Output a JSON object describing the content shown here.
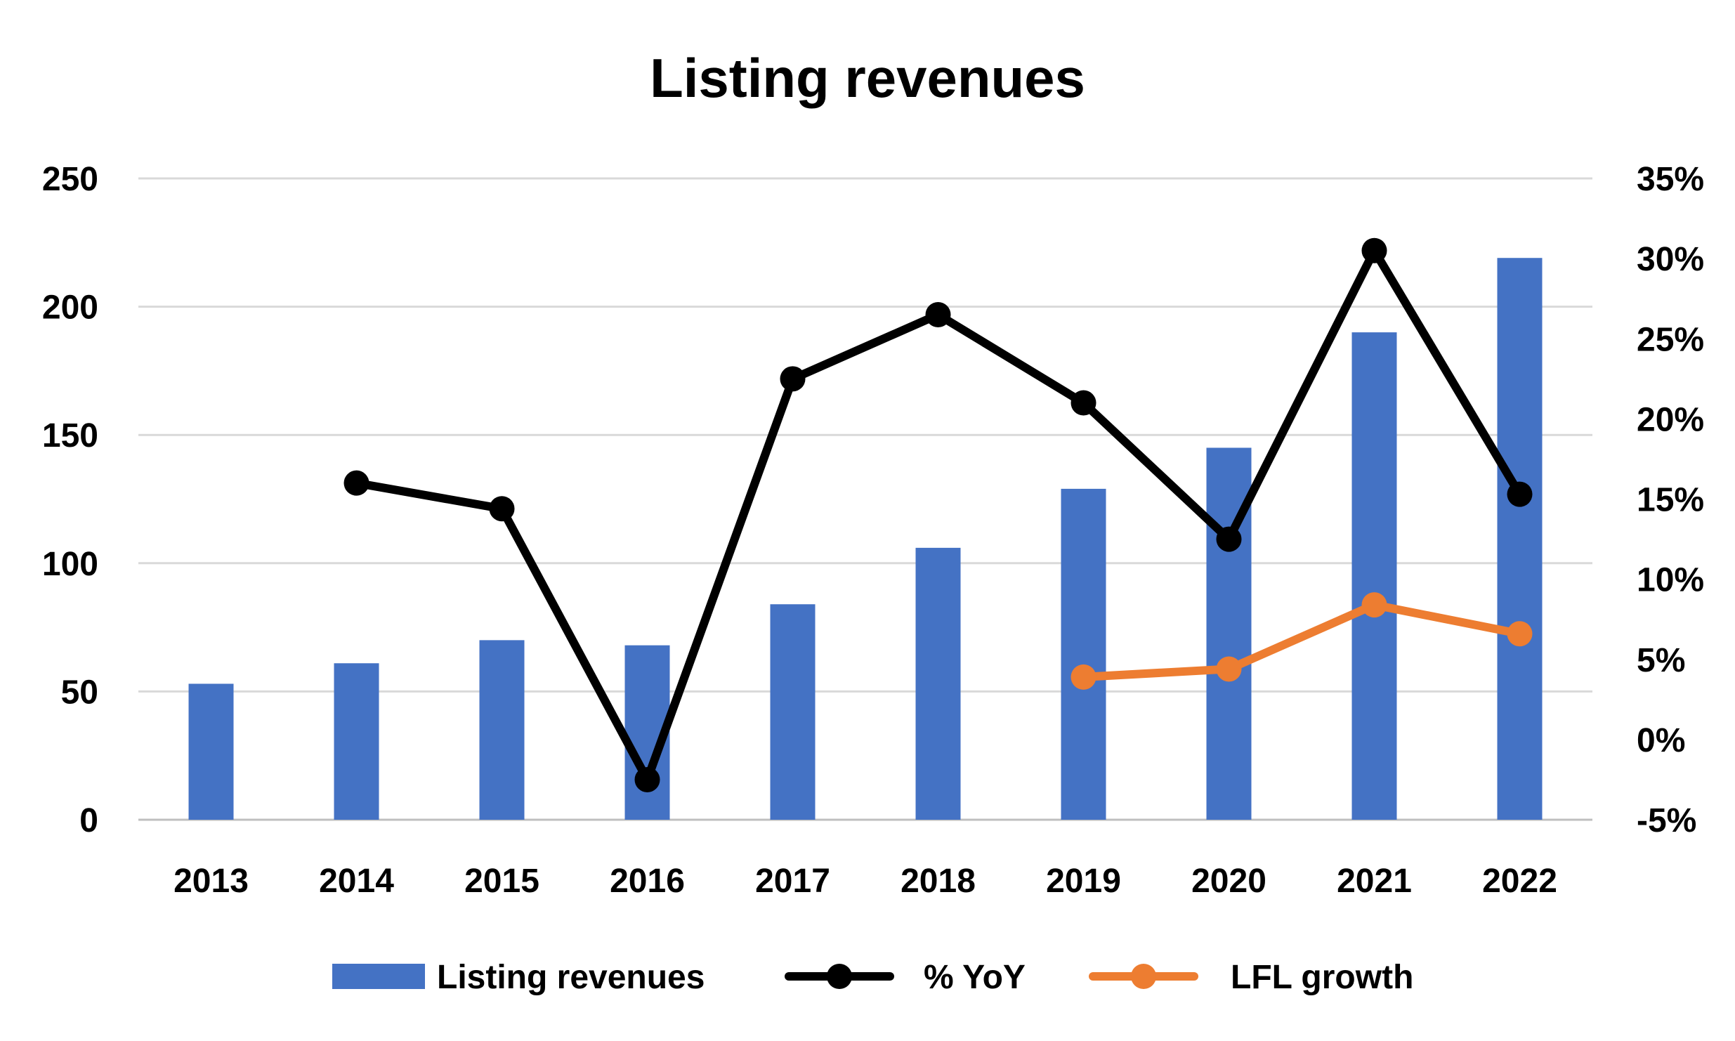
{
  "chart_data": {
    "type": "bar",
    "title": "Listing revenues",
    "xlabel": "",
    "ylabel": "",
    "y2label": "",
    "categories": [
      "2013",
      "2014",
      "2015",
      "2016",
      "2017",
      "2018",
      "2019",
      "2020",
      "2021",
      "2022"
    ],
    "ylim": [
      0,
      250
    ],
    "yticks": [
      "0",
      "50",
      "100",
      "150",
      "200",
      "250"
    ],
    "y2lim": [
      -5,
      35
    ],
    "y2ticks": [
      "-5%",
      "0%",
      "5%",
      "10%",
      "15%",
      "20%",
      "25%",
      "30%",
      "35%"
    ],
    "grid": true,
    "legend_position": "bottom",
    "series": [
      {
        "name": "Listing revenues",
        "type": "bar",
        "axis": "left",
        "color": "#4472C4",
        "values": [
          53,
          61,
          70,
          68,
          84,
          106,
          129,
          145,
          190,
          219
        ]
      },
      {
        "name": "% YoY",
        "type": "line",
        "axis": "right",
        "color": "#000000",
        "values": [
          null,
          16.0,
          14.4,
          -2.5,
          22.5,
          26.5,
          21.0,
          12.5,
          30.5,
          15.3
        ]
      },
      {
        "name": "LFL growth",
        "type": "line",
        "axis": "right",
        "color": "#ED7D31",
        "values": [
          null,
          null,
          null,
          null,
          null,
          null,
          3.9,
          4.4,
          8.4,
          6.6
        ]
      }
    ]
  }
}
